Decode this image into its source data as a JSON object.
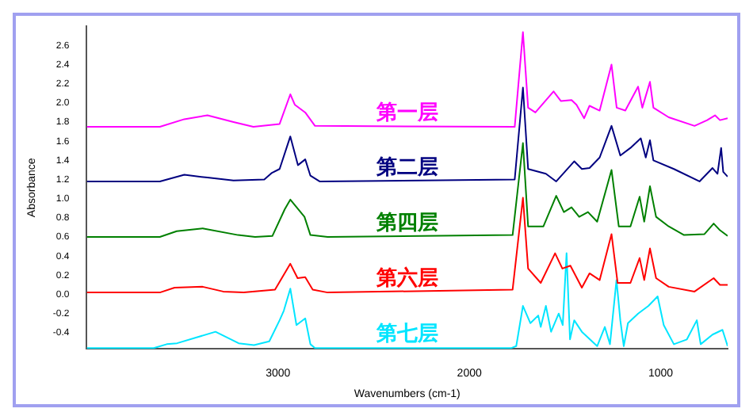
{
  "chart_data": {
    "type": "line",
    "xlabel": "Wavenumbers (cm-1)",
    "ylabel": "Absorbance",
    "xlim": [
      4000,
      650
    ],
    "xticks": [
      3000,
      2000,
      1000
    ],
    "ylim": [
      -0.57,
      2.8
    ],
    "yticks": [
      {
        "value": -0.4,
        "label": "-0.4"
      },
      {
        "value": -0.2,
        "label": "-0.2"
      },
      {
        "value": 0,
        "label": "0.0"
      },
      {
        "value": 0.2,
        "label": "0.2"
      },
      {
        "value": 0.4,
        "label": "0.4"
      },
      {
        "value": 0.6,
        "label": "0.6"
      },
      {
        "value": 0.8,
        "label": "0.8"
      },
      {
        "value": 1,
        "label": "1.0"
      },
      {
        "value": 1.2,
        "label": "1.2"
      },
      {
        "value": 1.4,
        "label": "1.4"
      },
      {
        "value": 1.6,
        "label": "1.6"
      },
      {
        "value": 1.8,
        "label": "1.8"
      },
      {
        "value": 2,
        "label": "2.0"
      },
      {
        "value": 2.2,
        "label": "2.2"
      },
      {
        "value": 2.4,
        "label": "2.4"
      },
      {
        "value": 2.6,
        "label": "2.6"
      }
    ],
    "grid": false,
    "legend": false,
    "marker": "none",
    "line_style": "solid",
    "series": [
      {
        "name": "第一层",
        "color": "#ff00ff",
        "x": [
          4000,
          3618,
          3490,
          3369,
          3233,
          3129,
          2992,
          2936,
          2912,
          2858,
          2807,
          1763,
          1720,
          1693,
          1655,
          1560,
          1522,
          1466,
          1440,
          1400,
          1372,
          1319,
          1257,
          1230,
          1185,
          1118,
          1096,
          1056,
          1038,
          958,
          823,
          757,
          716,
          690,
          650
        ],
        "values": [
          1.75,
          1.75,
          1.83,
          1.87,
          1.8,
          1.75,
          1.78,
          2.09,
          1.98,
          1.9,
          1.76,
          1.75,
          2.74,
          1.95,
          1.9,
          2.12,
          2.02,
          2.03,
          1.98,
          1.84,
          1.97,
          1.92,
          2.4,
          1.95,
          1.92,
          2.17,
          1.95,
          2.22,
          1.95,
          1.85,
          1.76,
          1.82,
          1.87,
          1.82,
          1.84
        ]
      },
      {
        "name": "第二层",
        "color": "#000080",
        "x": [
          4000,
          3618,
          3490,
          3369,
          3233,
          3072,
          3032,
          2992,
          2936,
          2896,
          2858,
          2831,
          2783,
          1763,
          1720,
          1693,
          1600,
          1546,
          1452,
          1412,
          1372,
          1319,
          1257,
          1211,
          1158,
          1104,
          1078,
          1056,
          1038,
          931,
          797,
          729,
          703,
          684,
          673,
          650
        ],
        "values": [
          1.18,
          1.18,
          1.25,
          1.22,
          1.19,
          1.2,
          1.27,
          1.31,
          1.65,
          1.35,
          1.41,
          1.24,
          1.18,
          1.2,
          2.16,
          1.31,
          1.26,
          1.18,
          1.39,
          1.31,
          1.32,
          1.43,
          1.76,
          1.45,
          1.53,
          1.63,
          1.43,
          1.61,
          1.4,
          1.31,
          1.18,
          1.32,
          1.26,
          1.53,
          1.28,
          1.23
        ]
      },
      {
        "name": "第四层",
        "color": "#008000",
        "x": [
          4000,
          3618,
          3530,
          3394,
          3209,
          3120,
          3030,
          2965,
          2936,
          2862,
          2831,
          2741,
          1774,
          1720,
          1693,
          1613,
          1546,
          1506,
          1466,
          1426,
          1380,
          1332,
          1257,
          1219,
          1158,
          1110,
          1086,
          1056,
          1024,
          958,
          878,
          771,
          723,
          690,
          650
        ],
        "values": [
          0.6,
          0.6,
          0.66,
          0.69,
          0.62,
          0.6,
          0.61,
          0.89,
          0.99,
          0.81,
          0.62,
          0.6,
          0.62,
          1.58,
          0.71,
          0.71,
          1.03,
          0.86,
          0.91,
          0.81,
          0.86,
          0.76,
          1.3,
          0.71,
          0.71,
          1.02,
          0.76,
          1.13,
          0.81,
          0.71,
          0.62,
          0.63,
          0.74,
          0.67,
          0.61
        ]
      },
      {
        "name": "第六层",
        "color": "#ff0000",
        "x": [
          4000,
          3618,
          3541,
          3394,
          3287,
          3180,
          3016,
          2936,
          2898,
          2858,
          2819,
          2741,
          1774,
          1720,
          1693,
          1627,
          1552,
          1514,
          1472,
          1412,
          1372,
          1319,
          1257,
          1225,
          1158,
          1110,
          1086,
          1056,
          1024,
          958,
          823,
          723,
          690,
          650
        ],
        "values": [
          0.02,
          0.02,
          0.07,
          0.08,
          0.03,
          0.02,
          0.05,
          0.32,
          0.17,
          0.18,
          0.05,
          0.02,
          0.05,
          1.01,
          0.27,
          0.12,
          0.43,
          0.27,
          0.3,
          0.07,
          0.22,
          0.15,
          0.63,
          0.12,
          0.12,
          0.38,
          0.15,
          0.48,
          0.17,
          0.08,
          0.03,
          0.17,
          0.1,
          0.1
        ]
      },
      {
        "name": "第七层",
        "color": "#00e5ff",
        "x": [
          4000,
          3650,
          3582,
          3528,
          3327,
          3206,
          3126,
          3046,
          2992,
          2970,
          2936,
          2904,
          2858,
          2831,
          2807,
          1780,
          1755,
          1720,
          1681,
          1640,
          1627,
          1600,
          1573,
          1533,
          1512,
          1492,
          1474,
          1452,
          1412,
          1332,
          1292,
          1265,
          1231,
          1211,
          1193,
          1171,
          1118,
          1064,
          1016,
          984,
          931,
          863,
          811,
          791,
          729,
          677,
          650
        ],
        "values": [
          -0.56,
          -0.56,
          -0.52,
          -0.51,
          -0.39,
          -0.51,
          -0.53,
          -0.49,
          -0.27,
          -0.17,
          0.06,
          -0.32,
          -0.25,
          -0.52,
          -0.56,
          -0.56,
          -0.54,
          -0.12,
          -0.3,
          -0.22,
          -0.34,
          -0.12,
          -0.39,
          -0.2,
          -0.32,
          0.43,
          -0.47,
          -0.27,
          -0.39,
          -0.54,
          -0.34,
          -0.52,
          0.15,
          -0.27,
          -0.54,
          -0.3,
          -0.2,
          -0.12,
          -0.02,
          -0.32,
          -0.52,
          -0.47,
          -0.27,
          -0.52,
          -0.42,
          -0.37,
          -0.54
        ]
      }
    ]
  }
}
